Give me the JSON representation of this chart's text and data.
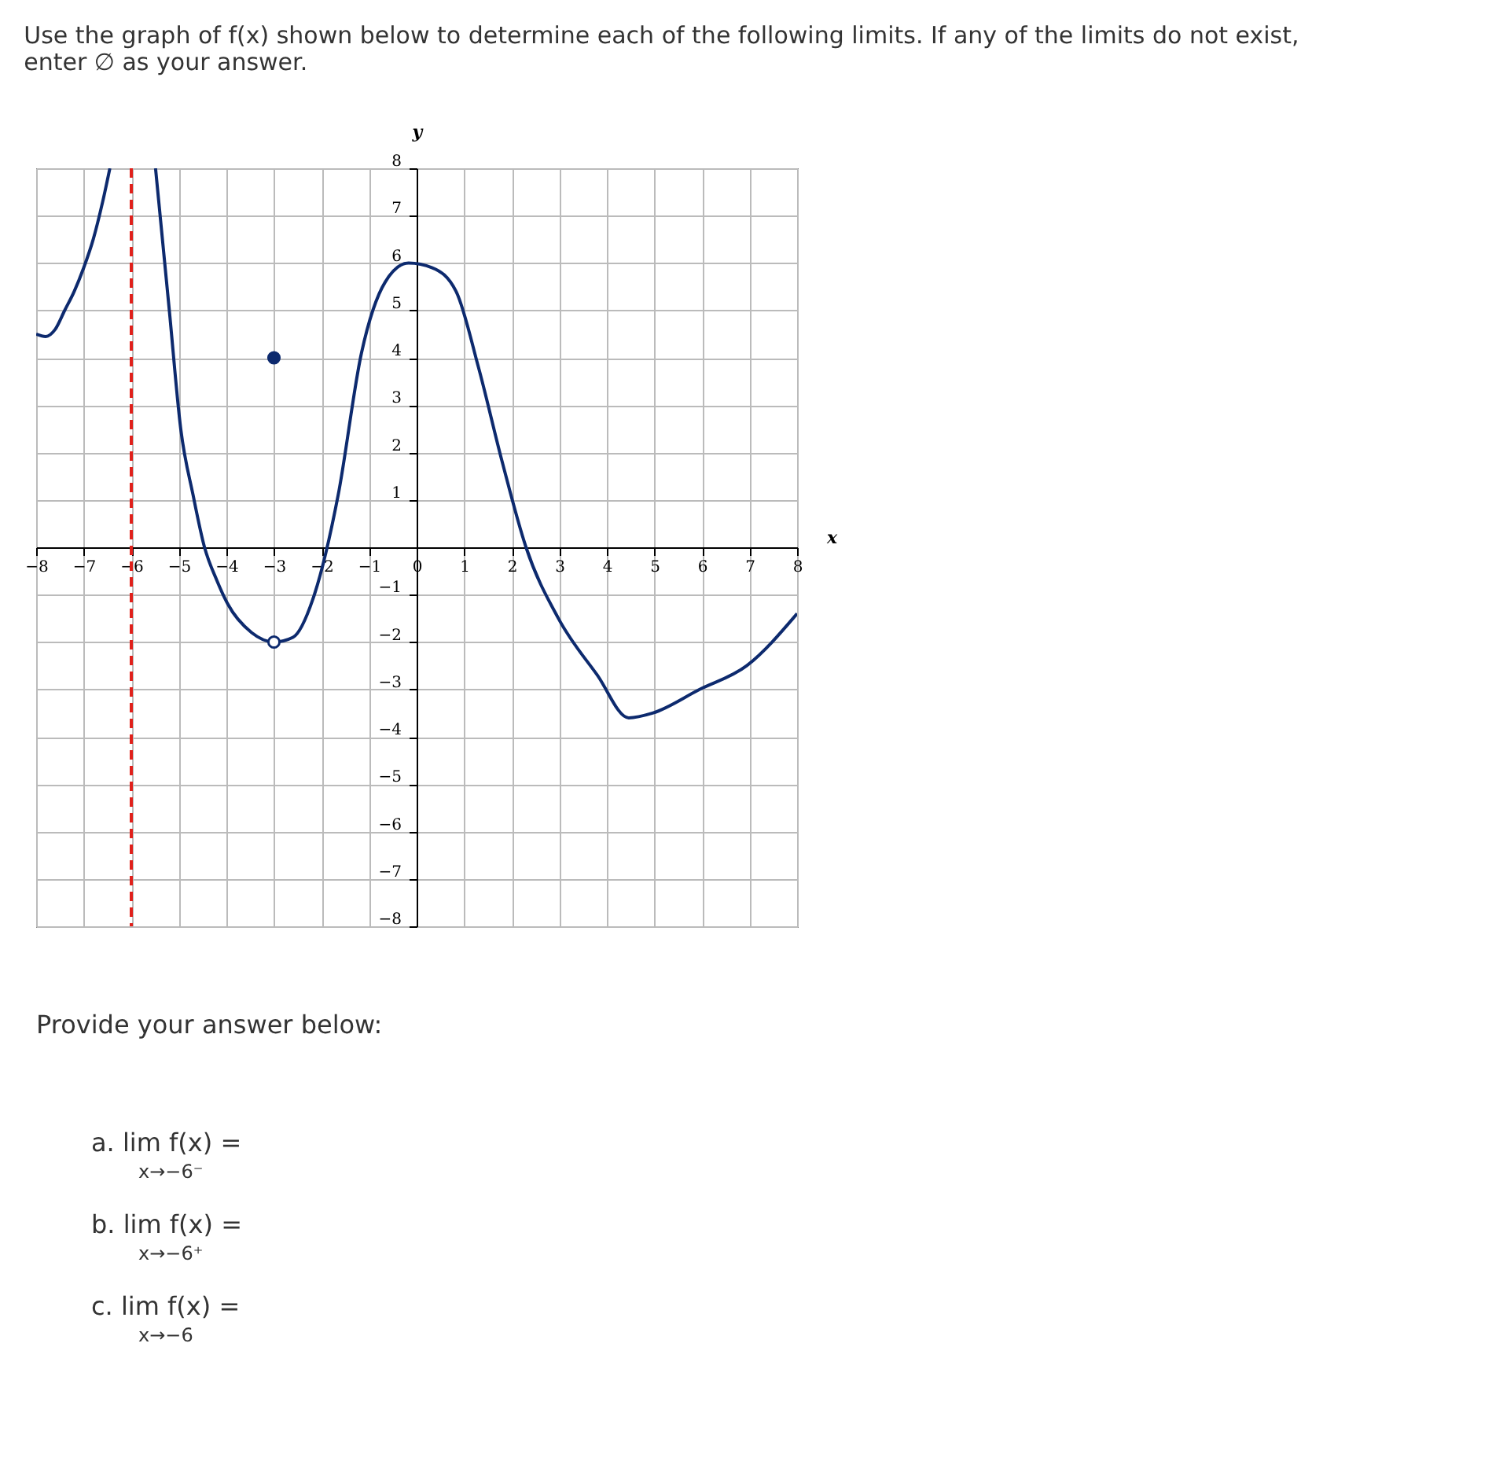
{
  "chart_data": {
    "type": "line",
    "title": "Use the graph of f(x) shown below to determine each of the following limits. If any of the limits do not exist, enter ∅ as your answer.",
    "xlabel": "x",
    "ylabel": "y",
    "xlim": [
      -8,
      8
    ],
    "ylim": [
      -8,
      8
    ],
    "xticks": [
      -8,
      -7,
      -6,
      -5,
      -4,
      -3,
      -2,
      -1,
      0,
      1,
      2,
      3,
      4,
      5,
      6,
      7,
      8
    ],
    "yticks": [
      -8,
      -7,
      -6,
      -5,
      -4,
      -3,
      -2,
      -1,
      1,
      2,
      3,
      4,
      5,
      6,
      7,
      8
    ],
    "grid": true,
    "series": [
      {
        "color": "#0d2a6e",
        "x": [
          -8,
          -7.8,
          -7.6,
          -7.4,
          -7.2,
          -7,
          -6.8,
          -6.6,
          -6.45
        ],
        "values": [
          4.5,
          4.45,
          4.6,
          5.0,
          5.4,
          5.9,
          6.5,
          7.3,
          8
        ]
      },
      {
        "color": "#0d2a6e",
        "x": [
          -5.49,
          -5.2,
          -4.96,
          -4.7,
          -4.46,
          -4.2,
          -3.97,
          -3.47,
          -3,
          -2.6,
          -2.15,
          -1.65,
          -1.16,
          -0.66,
          -0.17,
          0.33,
          0.83,
          1.3,
          1.8,
          2.3,
          2.98,
          3.8,
          4.46,
          4.96,
          5.95,
          6.94,
          8
        ],
        "values": [
          8,
          5.0,
          2.5,
          1.1,
          0,
          -0.7,
          -1.2,
          -1.8,
          -2,
          -1.9,
          -1,
          1.1,
          4.1,
          5.6,
          6,
          5.9,
          5.4,
          3.8,
          1.8,
          0,
          -1.5,
          -2.7,
          -3.6,
          -3.5,
          -3,
          -2.5,
          -1.4
        ]
      },
      {
        "type": "scatter",
        "marker": "circle",
        "color": "#0d2a6e",
        "x": [
          -3
        ],
        "values": [
          4
        ]
      },
      {
        "type": "scatter",
        "marker": "circle",
        "color": "#0d2a6e",
        "colors": [
          "#ffffff"
        ],
        "x": [
          -3
        ],
        "values": [
          -2
        ]
      }
    ],
    "ref_lines": [
      {
        "axis": "x",
        "value": -6,
        "color": "#e0201b",
        "line_style": "dashed"
      }
    ],
    "annotations": [
      "Provide your answer below:",
      "a. lim f(x) =",
      "x→−6⁻",
      "b. lim f(x) =",
      "x→−6⁺",
      "c. lim f(x) =",
      "x→−6"
    ]
  }
}
